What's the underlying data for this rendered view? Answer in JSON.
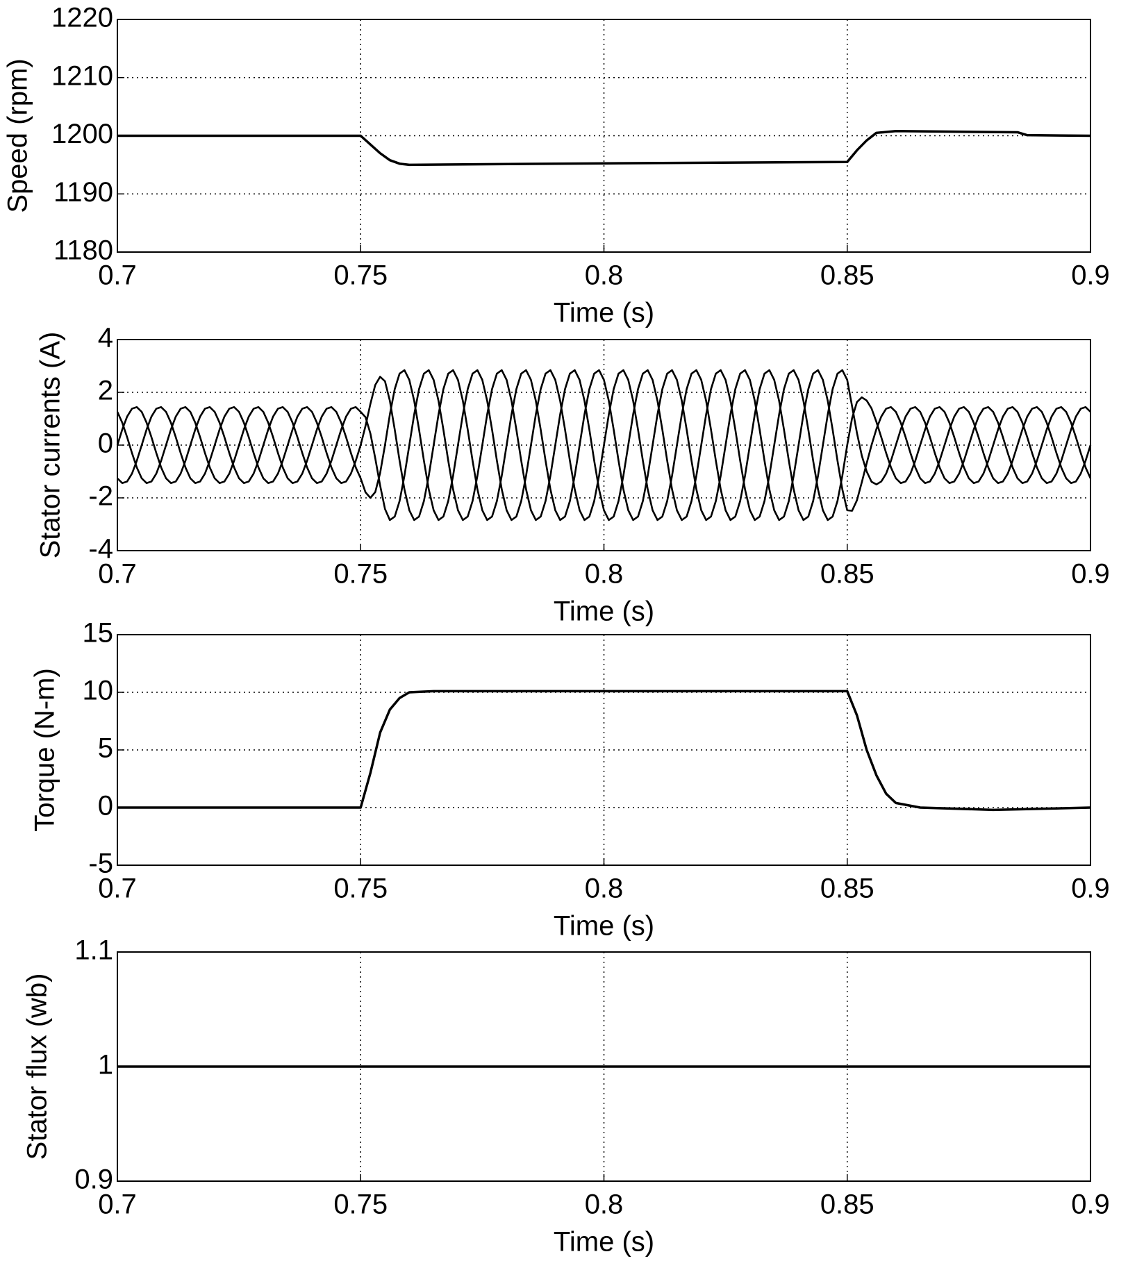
{
  "chart_data": [
    {
      "type": "line",
      "xlabel": "Time (s)",
      "ylabel": "Speed (rpm)",
      "grid": true,
      "xlim": [
        0.7,
        0.9
      ],
      "xticks": [
        0.7,
        0.75,
        0.8,
        0.85,
        0.9
      ],
      "ylim": [
        1180,
        1220
      ],
      "yticks": [
        1180,
        1190,
        1200,
        1210,
        1220
      ],
      "x": [
        0.7,
        0.75,
        0.752,
        0.754,
        0.756,
        0.758,
        0.76,
        0.79,
        0.85,
        0.852,
        0.854,
        0.856,
        0.86,
        0.885,
        0.887,
        0.9
      ],
      "series": [
        {
          "color": "#000000",
          "values": [
            1200,
            1200,
            1198.5,
            1197,
            1195.8,
            1195.2,
            1195,
            1195.2,
            1195.5,
            1197.5,
            1199.2,
            1200.5,
            1200.8,
            1200.6,
            1200.1,
            1200
          ]
        }
      ]
    },
    {
      "type": "line",
      "xlabel": "Time (s)",
      "ylabel": "Stator currents (A)",
      "grid": true,
      "xlim": [
        0.7,
        0.9
      ],
      "xticks": [
        0.7,
        0.75,
        0.8,
        0.85,
        0.9
      ],
      "ylim": [
        -4,
        4
      ],
      "yticks": [
        -4,
        -2,
        0,
        2,
        4
      ],
      "x": [
        0.7,
        0.701,
        0.702,
        0.703,
        0.704,
        0.705,
        0.706,
        0.707,
        0.708,
        0.709,
        0.71,
        0.711,
        0.712,
        0.713,
        0.714,
        0.715,
        0.716,
        0.717,
        0.718,
        0.719,
        0.72,
        0.721,
        0.722,
        0.723,
        0.724,
        0.725,
        0.726,
        0.727,
        0.728,
        0.729,
        0.73,
        0.731,
        0.732,
        0.733,
        0.734,
        0.735,
        0.736,
        0.737,
        0.738,
        0.739,
        0.74,
        0.741,
        0.742,
        0.743,
        0.744,
        0.745,
        0.746,
        0.747,
        0.748,
        0.749,
        0.75,
        0.751,
        0.752,
        0.753,
        0.754,
        0.755,
        0.756,
        0.757,
        0.758,
        0.759,
        0.76,
        0.761,
        0.762,
        0.763,
        0.764,
        0.765,
        0.766,
        0.767,
        0.768,
        0.769,
        0.77,
        0.771,
        0.772,
        0.773,
        0.774,
        0.775,
        0.776,
        0.777,
        0.778,
        0.779,
        0.78,
        0.781,
        0.782,
        0.783,
        0.784,
        0.785,
        0.786,
        0.787,
        0.788,
        0.789,
        0.79,
        0.791,
        0.792,
        0.793,
        0.794,
        0.795,
        0.796,
        0.797,
        0.798,
        0.799,
        0.8,
        0.801,
        0.802,
        0.803,
        0.804,
        0.805,
        0.806,
        0.807,
        0.808,
        0.809,
        0.81,
        0.811,
        0.812,
        0.813,
        0.814,
        0.815,
        0.816,
        0.817,
        0.818,
        0.819,
        0.82,
        0.821,
        0.822,
        0.823,
        0.824,
        0.825,
        0.826,
        0.827,
        0.828,
        0.829,
        0.83,
        0.831,
        0.832,
        0.833,
        0.834,
        0.835,
        0.836,
        0.837,
        0.838,
        0.839,
        0.84,
        0.841,
        0.842,
        0.843,
        0.844,
        0.845,
        0.846,
        0.847,
        0.848,
        0.849,
        0.85,
        0.851,
        0.852,
        0.853,
        0.854,
        0.855,
        0.856,
        0.857,
        0.858,
        0.859,
        0.86,
        0.861,
        0.862,
        0.863,
        0.864,
        0.865,
        0.866,
        0.867,
        0.868,
        0.869,
        0.87,
        0.871,
        0.872,
        0.873,
        0.874,
        0.875,
        0.876,
        0.877,
        0.878,
        0.879,
        0.88,
        0.881,
        0.882,
        0.883,
        0.884,
        0.885,
        0.886,
        0.887,
        0.888,
        0.889,
        0.89,
        0.891,
        0.892,
        0.893,
        0.894,
        0.895,
        0.896,
        0.897,
        0.898,
        0.899,
        0.9
      ],
      "series": [
        {
          "color": "#000000",
          "values": [
            0,
            0.59,
            1.08,
            1.38,
            1.44,
            1.26,
            0.85,
            0.3,
            -0.3,
            -0.85,
            -1.26,
            -1.44,
            -1.38,
            -1.08,
            -0.59,
            0,
            0.59,
            1.08,
            1.38,
            1.44,
            1.26,
            0.85,
            0.3,
            -0.3,
            -0.85,
            -1.26,
            -1.44,
            -1.38,
            -1.08,
            -0.59,
            0,
            0.59,
            1.08,
            1.38,
            1.44,
            1.26,
            0.85,
            0.3,
            -0.3,
            -0.85,
            -1.26,
            -1.44,
            -1.38,
            -1.08,
            -0.59,
            0,
            0.59,
            1.08,
            1.38,
            1.44,
            1.26,
            1.06,
            0.44,
            -0.5,
            -1.53,
            -2.42,
            -2.84,
            -2.71,
            -2.12,
            -1.16,
            0,
            1.16,
            2.12,
            2.71,
            2.84,
            2.47,
            1.68,
            0.59,
            -0.59,
            -1.68,
            -2.47,
            -2.84,
            -2.71,
            -2.12,
            -1.16,
            0,
            1.16,
            2.12,
            2.71,
            2.84,
            2.47,
            1.68,
            0.59,
            -0.59,
            -1.68,
            -2.47,
            -2.84,
            -2.71,
            -2.12,
            -1.16,
            0,
            1.16,
            2.12,
            2.71,
            2.84,
            2.47,
            1.68,
            0.59,
            -0.59,
            -1.68,
            -2.47,
            -2.84,
            -2.71,
            -2.12,
            -1.16,
            0,
            1.16,
            2.12,
            2.71,
            2.84,
            2.47,
            1.68,
            0.59,
            -0.59,
            -1.68,
            -2.47,
            -2.84,
            -2.71,
            -2.12,
            -1.16,
            0,
            1.16,
            2.12,
            2.71,
            2.84,
            2.47,
            1.68,
            0.59,
            -0.59,
            -1.68,
            -2.47,
            -2.84,
            -2.71,
            -2.12,
            -1.16,
            0,
            1.16,
            2.12,
            2.71,
            2.84,
            2.47,
            1.68,
            0.59,
            -0.59,
            -1.68,
            -2.47,
            -2.84,
            -2.71,
            -2.12,
            -1.16,
            0,
            1.02,
            1.63,
            1.81,
            1.69,
            1.39,
            0.88,
            0.3,
            -0.3,
            -0.85,
            -1.26,
            -1.44,
            -1.38,
            -1.08,
            -0.59,
            0,
            0.59,
            1.08,
            1.38,
            1.44,
            1.26,
            0.85,
            0.3,
            -0.3,
            -0.85,
            -1.26,
            -1.44,
            -1.38,
            -1.08,
            -0.59,
            0,
            0.59,
            1.08,
            1.38,
            1.44,
            1.26,
            0.85,
            0.3,
            -0.3,
            -0.85,
            -1.26,
            -1.44,
            -1.38,
            -1.08,
            -0.59,
            0,
            0.59,
            1.08,
            1.38,
            1.44,
            1.26
          ]
        },
        {
          "color": "#000000",
          "values": [
            1.26,
            0.85,
            0.3,
            -0.3,
            -0.85,
            -1.26,
            -1.44,
            -1.38,
            -1.08,
            -0.59,
            0,
            0.59,
            1.08,
            1.38,
            1.44,
            1.26,
            0.85,
            0.3,
            -0.3,
            -0.85,
            -1.26,
            -1.44,
            -1.38,
            -1.08,
            -0.59,
            0,
            0.59,
            1.08,
            1.38,
            1.44,
            1.26,
            0.85,
            0.3,
            -0.3,
            -0.85,
            -1.26,
            -1.44,
            -1.38,
            -1.08,
            -0.59,
            0,
            0.59,
            1.08,
            1.38,
            1.44,
            1.26,
            0.85,
            0.3,
            -0.3,
            -0.85,
            -1.26,
            -1.79,
            -2,
            -1.78,
            -1.06,
            0,
            1.16,
            2.12,
            2.71,
            2.84,
            2.47,
            1.68,
            0.59,
            -0.59,
            -1.68,
            -2.47,
            -2.84,
            -2.71,
            -2.12,
            -1.16,
            0,
            1.16,
            2.12,
            2.71,
            2.84,
            2.47,
            1.68,
            0.59,
            -0.59,
            -1.68,
            -2.47,
            -2.84,
            -2.71,
            -2.12,
            -1.16,
            0,
            1.16,
            2.12,
            2.71,
            2.84,
            2.47,
            1.68,
            0.59,
            -0.59,
            -1.68,
            -2.47,
            -2.84,
            -2.71,
            -2.12,
            -1.16,
            0,
            1.16,
            2.12,
            2.71,
            2.84,
            2.47,
            1.68,
            0.59,
            -0.59,
            -1.68,
            -2.47,
            -2.84,
            -2.71,
            -2.12,
            -1.16,
            0,
            1.16,
            2.12,
            2.71,
            2.84,
            2.47,
            1.68,
            0.59,
            -0.59,
            -1.68,
            -2.47,
            -2.84,
            -2.71,
            -2.12,
            -1.16,
            0,
            1.16,
            2.12,
            2.71,
            2.84,
            2.47,
            1.68,
            0.59,
            -0.59,
            -1.68,
            -2.47,
            -2.84,
            -2.71,
            -2.12,
            -1.16,
            0,
            1.16,
            2.12,
            2.71,
            2.84,
            2.47,
            1.47,
            0.46,
            -0.4,
            -1,
            -1.39,
            -1.49,
            -1.38,
            -1.08,
            -0.59,
            0,
            0.59,
            1.08,
            1.38,
            1.44,
            1.26,
            0.85,
            0.3,
            -0.3,
            -0.85,
            -1.26,
            -1.44,
            -1.38,
            -1.08,
            -0.59,
            0,
            0.59,
            1.08,
            1.38,
            1.44,
            1.26,
            0.85,
            0.3,
            -0.3,
            -0.85,
            -1.26,
            -1.44,
            -1.38,
            -1.08,
            -0.59,
            0,
            0.59,
            1.08,
            1.38,
            1.44,
            1.26,
            0.85,
            0.3,
            -0.3,
            -0.85,
            -1.26
          ]
        },
        {
          "color": "#000000",
          "values": [
            -1.26,
            -1.44,
            -1.38,
            -1.08,
            -0.59,
            0,
            0.59,
            1.08,
            1.38,
            1.44,
            1.26,
            0.85,
            0.3,
            -0.3,
            -0.85,
            -1.26,
            -1.44,
            -1.38,
            -1.08,
            -0.59,
            0,
            0.59,
            1.08,
            1.38,
            1.44,
            1.26,
            0.85,
            0.3,
            -0.3,
            -0.85,
            -1.26,
            -1.44,
            -1.38,
            -1.08,
            -0.59,
            0,
            0.59,
            1.08,
            1.38,
            1.44,
            1.26,
            0.85,
            0.3,
            -0.3,
            -0.85,
            -1.26,
            -1.44,
            -1.38,
            -1.08,
            -0.59,
            0,
            0.73,
            1.56,
            2.28,
            2.59,
            2.42,
            1.68,
            0.59,
            -0.59,
            -1.68,
            -2.47,
            -2.84,
            -2.71,
            -2.12,
            -1.16,
            0,
            1.16,
            2.12,
            2.71,
            2.84,
            2.47,
            1.68,
            0.59,
            -0.59,
            -1.68,
            -2.47,
            -2.84,
            -2.71,
            -2.12,
            -1.16,
            0,
            1.16,
            2.12,
            2.71,
            2.84,
            2.47,
            1.68,
            0.59,
            -0.59,
            -1.68,
            -2.47,
            -2.84,
            -2.71,
            -2.12,
            -1.16,
            0,
            1.16,
            2.12,
            2.71,
            2.84,
            2.47,
            1.68,
            0.59,
            -0.59,
            -1.68,
            -2.47,
            -2.84,
            -2.71,
            -2.12,
            -1.16,
            0,
            1.16,
            2.12,
            2.71,
            2.84,
            2.47,
            1.68,
            0.59,
            -0.59,
            -1.68,
            -2.47,
            -2.84,
            -2.71,
            -2.12,
            -1.16,
            0,
            1.16,
            2.12,
            2.71,
            2.84,
            2.47,
            1.68,
            0.59,
            -0.59,
            -1.68,
            -2.47,
            -2.84,
            -2.71,
            -2.12,
            -1.16,
            0,
            1.16,
            2.12,
            2.71,
            2.84,
            2.47,
            1.68,
            0.59,
            -0.59,
            -1.68,
            -2.47,
            -2.49,
            -2.09,
            -1.41,
            -0.69,
            0,
            0.61,
            1.08,
            1.38,
            1.44,
            1.26,
            0.85,
            0.3,
            -0.3,
            -0.85,
            -1.26,
            -1.44,
            -1.38,
            -1.08,
            -0.59,
            0,
            0.59,
            1.08,
            1.38,
            1.44,
            1.26,
            0.85,
            0.3,
            -0.3,
            -0.85,
            -1.26,
            -1.44,
            -1.38,
            -1.08,
            -0.59,
            0,
            0.59,
            1.08,
            1.38,
            1.44,
            1.26,
            0.85,
            0.3,
            -0.3,
            -0.85,
            -1.26,
            -1.44,
            -1.38,
            -1.08,
            -0.59,
            0
          ]
        }
      ]
    },
    {
      "type": "line",
      "xlabel": "Time (s)",
      "ylabel": "Torque (N-m)",
      "grid": true,
      "xlim": [
        0.7,
        0.9
      ],
      "xticks": [
        0.7,
        0.75,
        0.8,
        0.85,
        0.9
      ],
      "ylim": [
        -5,
        15
      ],
      "yticks": [
        -5,
        0,
        5,
        10,
        15
      ],
      "x": [
        0.7,
        0.75,
        0.752,
        0.754,
        0.756,
        0.758,
        0.76,
        0.765,
        0.85,
        0.852,
        0.854,
        0.856,
        0.858,
        0.86,
        0.865,
        0.88,
        0.9
      ],
      "series": [
        {
          "color": "#000000",
          "values": [
            0,
            0,
            3,
            6.5,
            8.5,
            9.5,
            10,
            10.1,
            10.1,
            8,
            5,
            2.8,
            1.2,
            0.4,
            0,
            -0.2,
            0
          ]
        }
      ]
    },
    {
      "type": "line",
      "xlabel": "Time (s)",
      "ylabel": "Stator flux (wb)",
      "grid": true,
      "xlim": [
        0.7,
        0.9
      ],
      "xticks": [
        0.7,
        0.75,
        0.8,
        0.85,
        0.9
      ],
      "ylim": [
        0.9,
        1.1
      ],
      "yticks": [
        0.9,
        1,
        1.1
      ],
      "x": [
        0.7,
        0.9
      ],
      "series": [
        {
          "color": "#000000",
          "values": [
            1,
            1
          ]
        }
      ]
    }
  ]
}
